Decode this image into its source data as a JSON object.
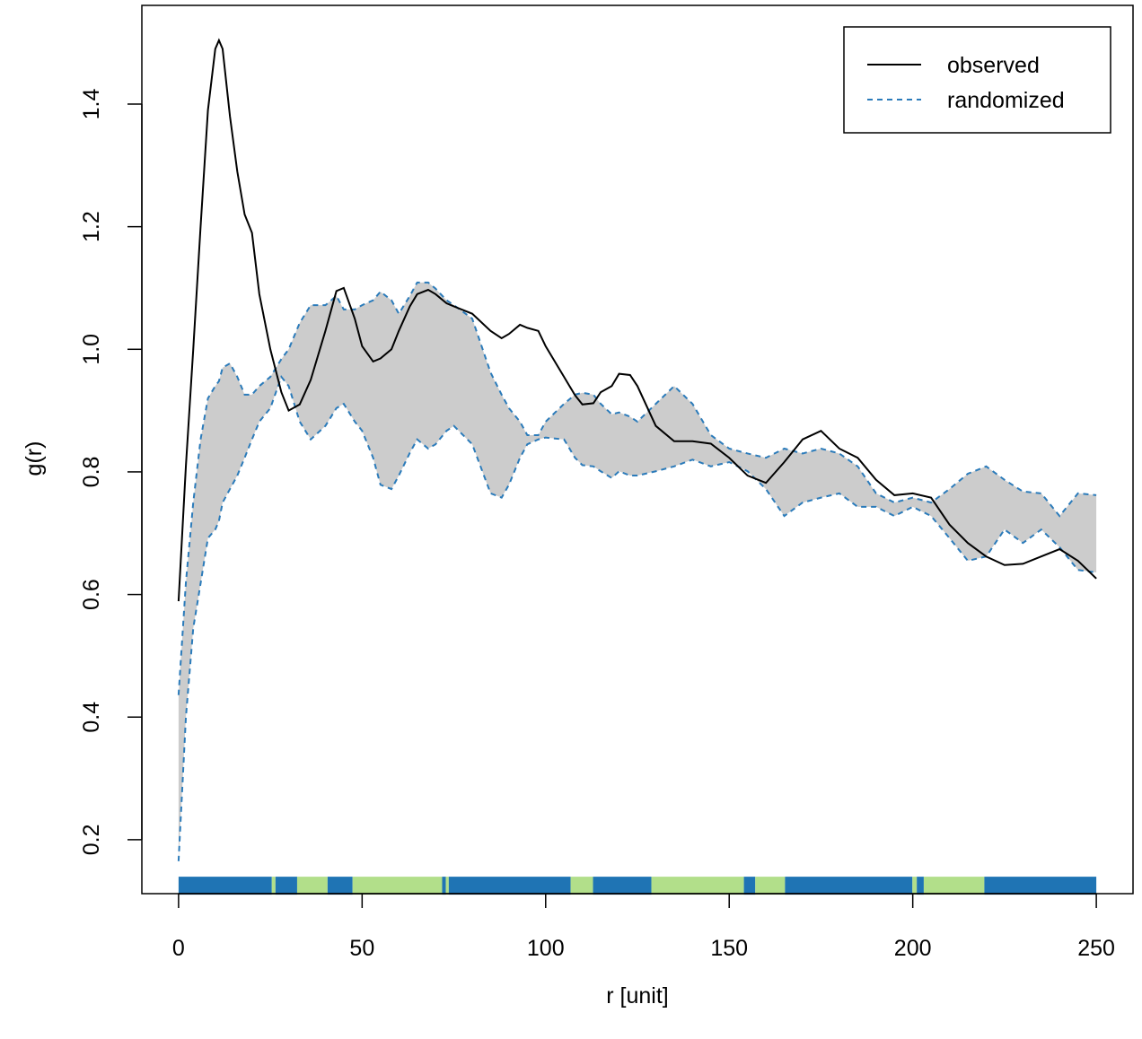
{
  "chart_data": {
    "type": "envelope",
    "xlabel": "r [unit]",
    "ylabel": "g(r)",
    "xlim": [
      -10,
      260
    ],
    "ylim": [
      0.112,
      1.561
    ],
    "xticks": [
      0,
      50,
      100,
      150,
      200,
      250
    ],
    "yticks": [
      0.2,
      0.4,
      0.6,
      0.8,
      1.0,
      1.2,
      1.4
    ],
    "legend": "topright",
    "x": [
      0,
      2,
      4,
      6,
      8,
      10,
      11,
      12,
      14,
      16,
      18,
      20,
      22,
      25,
      28,
      30,
      33,
      36,
      40,
      43,
      45,
      48,
      50,
      53,
      55,
      58,
      60,
      63,
      65,
      68,
      70,
      73,
      75,
      80,
      85,
      88,
      90,
      93,
      95,
      98,
      100,
      105,
      108,
      110,
      113,
      115,
      118,
      120,
      123,
      125,
      130,
      135,
      140,
      145,
      150,
      155,
      160,
      165,
      170,
      175,
      180,
      185,
      190,
      195,
      200,
      205,
      210,
      215,
      220,
      225,
      230,
      235,
      240,
      245,
      250
    ],
    "series": [
      {
        "name": "observed",
        "color": "#000000",
        "dash": "none",
        "values": [
          0.589,
          0.81,
          1.0,
          1.2,
          1.39,
          1.49,
          1.504,
          1.49,
          1.38,
          1.29,
          1.22,
          1.19,
          1.09,
          1.0,
          0.93,
          0.9,
          0.91,
          0.95,
          1.03,
          1.095,
          1.1,
          1.05,
          1.005,
          0.98,
          0.985,
          1.0,
          1.03,
          1.07,
          1.09,
          1.097,
          1.09,
          1.075,
          1.07,
          1.058,
          1.03,
          1.018,
          1.025,
          1.04,
          1.035,
          1.03,
          1.005,
          0.955,
          0.925,
          0.91,
          0.912,
          0.93,
          0.94,
          0.96,
          0.958,
          0.94,
          0.875,
          0.85,
          0.85,
          0.846,
          0.823,
          0.794,
          0.782,
          0.816,
          0.853,
          0.867,
          0.838,
          0.823,
          0.787,
          0.762,
          0.765,
          0.758,
          0.714,
          0.684,
          0.662,
          0.648,
          0.65,
          0.662,
          0.674,
          0.655,
          0.626
        ]
      },
      {
        "name": "randomized",
        "color": "#2b7bba",
        "dash": "6 5",
        "fill": "#cccccc",
        "upper": [
          0.436,
          0.62,
          0.75,
          0.853,
          0.92,
          0.94,
          0.948,
          0.97,
          0.977,
          0.955,
          0.926,
          0.926,
          0.94,
          0.955,
          0.984,
          1.0,
          1.043,
          1.072,
          1.072,
          1.087,
          1.065,
          1.065,
          1.072,
          1.08,
          1.094,
          1.08,
          1.058,
          1.087,
          1.109,
          1.109,
          1.099,
          1.08,
          1.072,
          1.05,
          0.962,
          0.926,
          0.904,
          0.882,
          0.86,
          0.86,
          0.882,
          0.911,
          0.926,
          0.929,
          0.926,
          0.911,
          0.894,
          0.897,
          0.89,
          0.882,
          0.911,
          0.94,
          0.911,
          0.86,
          0.838,
          0.83,
          0.823,
          0.838,
          0.83,
          0.838,
          0.83,
          0.809,
          0.765,
          0.75,
          0.758,
          0.75,
          0.772,
          0.797,
          0.809,
          0.787,
          0.768,
          0.765,
          0.728,
          0.765,
          0.762
        ],
        "lower": [
          0.165,
          0.4,
          0.545,
          0.618,
          0.692,
          0.706,
          0.72,
          0.75,
          0.772,
          0.794,
          0.823,
          0.853,
          0.882,
          0.904,
          0.955,
          0.94,
          0.882,
          0.853,
          0.875,
          0.904,
          0.911,
          0.882,
          0.867,
          0.823,
          0.779,
          0.772,
          0.794,
          0.831,
          0.853,
          0.838,
          0.845,
          0.867,
          0.875,
          0.845,
          0.765,
          0.758,
          0.779,
          0.823,
          0.845,
          0.853,
          0.856,
          0.853,
          0.823,
          0.811,
          0.809,
          0.801,
          0.79,
          0.801,
          0.794,
          0.794,
          0.801,
          0.809,
          0.82,
          0.809,
          0.816,
          0.801,
          0.772,
          0.728,
          0.75,
          0.758,
          0.765,
          0.743,
          0.743,
          0.728,
          0.743,
          0.728,
          0.692,
          0.655,
          0.662,
          0.706,
          0.684,
          0.706,
          0.677,
          0.64,
          0.636
        ]
      }
    ],
    "rug": {
      "y": 0.125,
      "segments": [
        {
          "from": 0,
          "to": 25.4,
          "color": "#1f74b4"
        },
        {
          "from": 25.4,
          "to": 26.4,
          "color": "#b2df8a"
        },
        {
          "from": 26.4,
          "to": 32.3,
          "color": "#1f74b4"
        },
        {
          "from": 32.3,
          "to": 40.6,
          "color": "#b2df8a"
        },
        {
          "from": 40.6,
          "to": 47.4,
          "color": "#1f74b4"
        },
        {
          "from": 47.4,
          "to": 71.8,
          "color": "#b2df8a"
        },
        {
          "from": 71.8,
          "to": 72.8,
          "color": "#1f74b4"
        },
        {
          "from": 72.8,
          "to": 73.6,
          "color": "#b2df8a"
        },
        {
          "from": 73.6,
          "to": 106.8,
          "color": "#1f74b4"
        },
        {
          "from": 106.8,
          "to": 112.9,
          "color": "#b2df8a"
        },
        {
          "from": 112.9,
          "to": 128.8,
          "color": "#1f74b4"
        },
        {
          "from": 128.8,
          "to": 154,
          "color": "#b2df8a"
        },
        {
          "from": 154,
          "to": 157.1,
          "color": "#1f74b4"
        },
        {
          "from": 157.1,
          "to": 165.2,
          "color": "#b2df8a"
        },
        {
          "from": 165.2,
          "to": 199.9,
          "color": "#1f74b4"
        },
        {
          "from": 199.9,
          "to": 201.1,
          "color": "#b2df8a"
        },
        {
          "from": 201.1,
          "to": 203,
          "color": "#1f74b4"
        },
        {
          "from": 203,
          "to": 219.5,
          "color": "#b2df8a"
        },
        {
          "from": 219.5,
          "to": 250,
          "color": "#1f74b4"
        }
      ]
    }
  }
}
